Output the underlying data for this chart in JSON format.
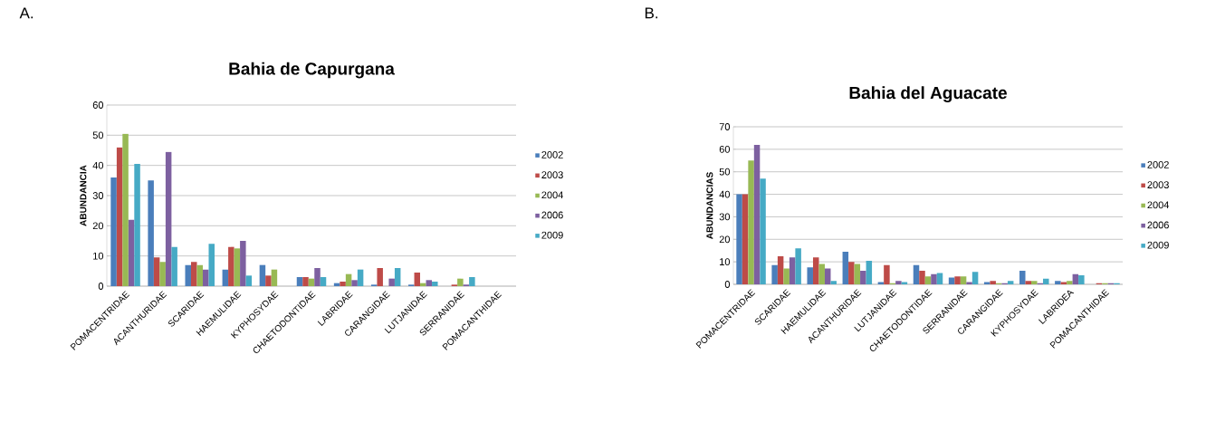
{
  "chart_data": [
    {
      "type": "bar",
      "title": "Bahia de Capurgana",
      "ylabel": "ABUNDANCIA",
      "annotations": [
        "A."
      ],
      "categories": [
        "POMACENTRIDAE",
        "ACANTHURIDAE",
        "SCARIDAE",
        "HAEMULIDAE",
        "KYPHOSYDAE",
        "CHAETODONTIDAE",
        "LABRIDAE",
        "CARANGIDAE",
        "LUTJANIDAE",
        "SERRANIDAE",
        "POMACANTHIDAE"
      ],
      "series": [
        {
          "name": "2002",
          "color": "#4a7ebb",
          "values": [
            36,
            35,
            7,
            5.5,
            7,
            3,
            1,
            0.5,
            0.5,
            0,
            0
          ]
        },
        {
          "name": "2003",
          "color": "#be4b48",
          "values": [
            46,
            9.5,
            8,
            13,
            3.5,
            3,
            1.5,
            6,
            4.5,
            0.5,
            0
          ]
        },
        {
          "name": "2004",
          "color": "#98b954",
          "values": [
            50.5,
            8,
            7,
            12.5,
            5.5,
            2.5,
            4,
            0,
            1,
            2.5,
            0
          ]
        },
        {
          "name": "2006",
          "color": "#7d60a0",
          "values": [
            22,
            44.5,
            5.5,
            15,
            0,
            6,
            2,
            2.5,
            2,
            0.5,
            0
          ]
        },
        {
          "name": "2009",
          "color": "#46aac5",
          "values": [
            40.5,
            13,
            14,
            3.5,
            0,
            3,
            5.5,
            6,
            1.5,
            3,
            0
          ]
        }
      ],
      "ylim": [
        0,
        60
      ],
      "yticks": [
        0,
        10,
        20,
        30,
        40,
        50,
        60
      ],
      "grid": "y",
      "legend": "right"
    },
    {
      "type": "bar",
      "title": "Bahia del Aguacate",
      "ylabel": "ABUNDANCIAS",
      "annotations": [
        "B."
      ],
      "categories": [
        "POMACENTRIDAE",
        "SCARIDAE",
        "HAEMULIDAE",
        "ACANTHURIDAE",
        "LUTJANIDAE",
        "CHAETODONTIDAE",
        "SERRANIDAE",
        "CARANGIDAE",
        "KYPHOSYDAE",
        "LABRIDEA",
        "POMACANTHIDAE"
      ],
      "series": [
        {
          "name": "2002",
          "color": "#4a7ebb",
          "values": [
            40,
            8.5,
            7.5,
            14.5,
            1,
            8.5,
            3,
            1,
            6,
            1.5,
            0
          ]
        },
        {
          "name": "2003",
          "color": "#be4b48",
          "values": [
            40,
            12.5,
            12,
            10,
            8.5,
            6,
            3.5,
            1.5,
            1.5,
            1,
            0.5
          ]
        },
        {
          "name": "2004",
          "color": "#98b954",
          "values": [
            55,
            7,
            9,
            9,
            0.5,
            3.5,
            3.5,
            0.5,
            1.5,
            1.5,
            0.5
          ]
        },
        {
          "name": "2006",
          "color": "#7d60a0",
          "values": [
            62,
            12,
            7,
            6,
            1.5,
            4.5,
            1,
            0.5,
            0.5,
            4.5,
            0.5
          ]
        },
        {
          "name": "2009",
          "color": "#46aac5",
          "values": [
            47,
            16,
            1.5,
            10.5,
            1,
            5,
            5.5,
            1.5,
            2.5,
            4,
            0.5
          ]
        }
      ],
      "ylim": [
        0,
        70
      ],
      "yticks": [
        0,
        10,
        20,
        30,
        40,
        50,
        60,
        70
      ],
      "grid": "y",
      "legend": "right"
    }
  ]
}
